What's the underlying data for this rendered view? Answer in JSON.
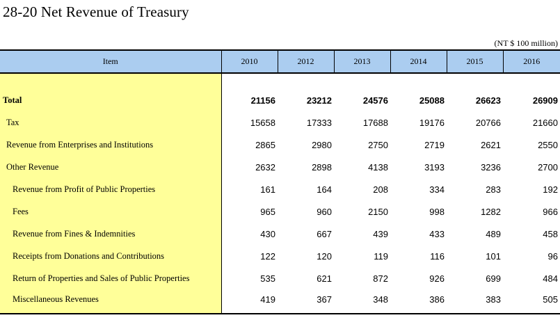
{
  "title": "28-20  Net Revenue of Treasury",
  "unit": "(NT $ 100 million)",
  "table": {
    "item_header": "Item",
    "years": [
      "2010",
      "2012",
      "2013",
      "2014",
      "2015",
      "2016"
    ],
    "rows": [
      {
        "label": "Total",
        "level": 0,
        "bold": true,
        "values": [
          "21156",
          "23212",
          "24576",
          "25088",
          "26623",
          "26909"
        ]
      },
      {
        "label": "Tax",
        "level": 1,
        "bold": false,
        "values": [
          "15658",
          "17333",
          "17688",
          "19176",
          "20766",
          "21660"
        ]
      },
      {
        "label": "Revenue from Enterprises and Institutions",
        "level": 1,
        "bold": false,
        "values": [
          "2865",
          "2980",
          "2750",
          "2719",
          "2621",
          "2550"
        ]
      },
      {
        "label": "Other Revenue",
        "level": 1,
        "bold": false,
        "values": [
          "2632",
          "2898",
          "4138",
          "3193",
          "3236",
          "2700"
        ]
      },
      {
        "label": "Revenue from Profit of Public Properties",
        "level": 2,
        "bold": false,
        "values": [
          "161",
          "164",
          "208",
          "334",
          "283",
          "192"
        ]
      },
      {
        "label": "Fees",
        "level": 2,
        "bold": false,
        "values": [
          "965",
          "960",
          "2150",
          "998",
          "1282",
          "966"
        ]
      },
      {
        "label": "Revenue from Fines & Indemnities",
        "level": 2,
        "bold": false,
        "values": [
          "430",
          "667",
          "439",
          "433",
          "489",
          "458"
        ]
      },
      {
        "label": "Receipts from Donations and Contributions",
        "level": 2,
        "bold": false,
        "values": [
          "122",
          "120",
          "119",
          "116",
          "101",
          "96"
        ]
      },
      {
        "label": "Return of Properties and Sales of Public Properties",
        "level": 2,
        "bold": false,
        "values": [
          "535",
          "621",
          "872",
          "926",
          "699",
          "484"
        ]
      },
      {
        "label": "Miscellaneous Revenues",
        "level": 2,
        "bold": false,
        "values": [
          "419",
          "367",
          "348",
          "386",
          "383",
          "505"
        ]
      }
    ]
  },
  "colors": {
    "header_bg": "#abcdf0",
    "item_column_bg": "#ffff99"
  }
}
